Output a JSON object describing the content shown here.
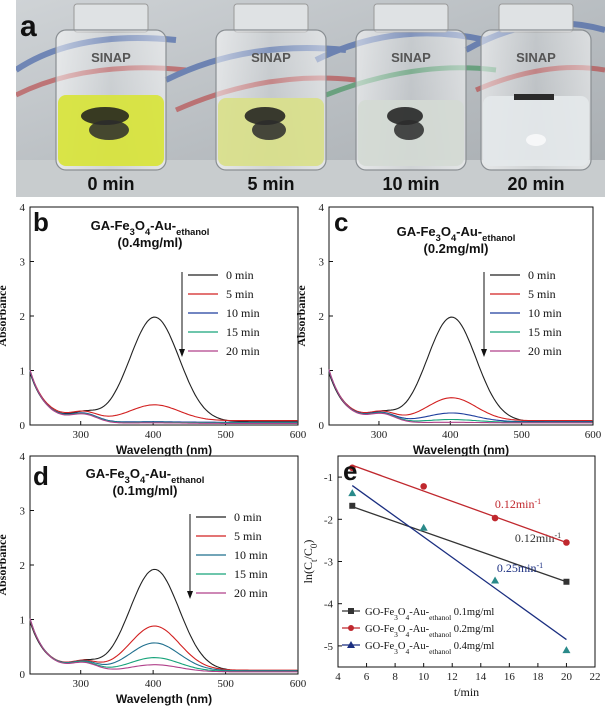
{
  "photo": {
    "panel_letter": "a",
    "brand_text": "SINAP",
    "time_labels": [
      "0 min",
      "5 min",
      "10 min",
      "20 min"
    ]
  },
  "chart_data": [
    {
      "panel": "b",
      "type": "line",
      "title_lines": [
        "GA-Fe3O4-Au-ethanol",
        "(0.4mg/ml)"
      ],
      "xlabel": "Wavelength (nm)",
      "ylabel": "Absorbance",
      "xlim": [
        230,
        600
      ],
      "ylim": [
        0,
        4
      ],
      "xticks": [
        300,
        400,
        500,
        600
      ],
      "yticks": [
        0,
        1,
        2,
        3,
        4
      ],
      "series": [
        {
          "name": "0 min",
          "color": "#222222",
          "baseline": 0.06,
          "peak": 1.98
        },
        {
          "name": "5 min",
          "color": "#d22020",
          "baseline": 0.08,
          "peak": 0.37
        },
        {
          "name": "10 min",
          "color": "#1f3f9e",
          "baseline": 0.05,
          "peak": 0.06
        },
        {
          "name": "15 min",
          "color": "#17a37a",
          "baseline": 0.04,
          "peak": 0.05
        },
        {
          "name": "20 min",
          "color": "#b0408a",
          "baseline": 0.03,
          "peak": 0.04
        }
      ]
    },
    {
      "panel": "c",
      "type": "line",
      "title_lines": [
        "GA-Fe3O4-Au-ethanol",
        "(0.2mg/ml)"
      ],
      "xlabel": "Wavelength (nm)",
      "ylabel": "Absorbance",
      "xlim": [
        230,
        600
      ],
      "ylim": [
        0,
        4
      ],
      "xticks": [
        300,
        400,
        500,
        600
      ],
      "yticks": [
        0,
        1,
        2,
        3,
        4
      ],
      "series": [
        {
          "name": "0 min",
          "color": "#222222",
          "baseline": 0.06,
          "peak": 1.98
        },
        {
          "name": "5 min",
          "color": "#d22020",
          "baseline": 0.08,
          "peak": 0.5
        },
        {
          "name": "10 min",
          "color": "#1f3f9e",
          "baseline": 0.06,
          "peak": 0.22
        },
        {
          "name": "15 min",
          "color": "#17a37a",
          "baseline": 0.05,
          "peak": 0.1
        },
        {
          "name": "20 min",
          "color": "#b0408a",
          "baseline": 0.04,
          "peak": 0.05
        }
      ]
    },
    {
      "panel": "d",
      "type": "line",
      "title_lines": [
        "GA-Fe3O4-Au-ethanol",
        "(0.1mg/ml)"
      ],
      "xlabel": "Wavelength (nm)",
      "ylabel": "Absorbance",
      "xlim": [
        230,
        600
      ],
      "ylim": [
        0,
        4
      ],
      "xticks": [
        300,
        400,
        500,
        600
      ],
      "yticks": [
        0,
        1,
        2,
        3,
        4
      ],
      "series": [
        {
          "name": "0 min",
          "color": "#222222",
          "baseline": 0.06,
          "peak": 1.92
        },
        {
          "name": "5 min",
          "color": "#d22020",
          "baseline": 0.07,
          "peak": 0.88
        },
        {
          "name": "10 min",
          "color": "#1f6f8e",
          "baseline": 0.06,
          "peak": 0.57
        },
        {
          "name": "15 min",
          "color": "#17a37a",
          "baseline": 0.05,
          "peak": 0.3
        },
        {
          "name": "20 min",
          "color": "#b0408a",
          "baseline": 0.04,
          "peak": 0.17
        }
      ]
    },
    {
      "panel": "e",
      "type": "scatter",
      "xlabel": "t/min",
      "ylabel": "ln(Ct/C0)",
      "xlim": [
        4,
        22
      ],
      "ylim": [
        -5.5,
        -0.5
      ],
      "xticks": [
        4,
        6,
        8,
        10,
        12,
        14,
        16,
        18,
        20,
        22
      ],
      "yticks": [
        -1,
        -2,
        -3,
        -4,
        -5
      ],
      "series": [
        {
          "name": "GO-Fe3O4-Au-ethanol 0.1mg/ml",
          "color": "#333333",
          "marker": "square",
          "x": [
            5,
            20
          ],
          "y": [
            -1.68,
            -3.48
          ],
          "fit": [
            [
              5,
              -1.7
            ],
            [
              20,
              -3.48
            ]
          ],
          "rate": "0.12min-1"
        },
        {
          "name": "GO-Fe3O4-Au-ethanol 0.2mg/ml",
          "color": "#c0282e",
          "marker": "circle",
          "x": [
            5,
            10,
            15,
            20
          ],
          "y": [
            -0.78,
            -1.22,
            -1.97,
            -2.55
          ],
          "fit": [
            [
              5,
              -0.72
            ],
            [
              20,
              -2.55
            ]
          ],
          "rate": "0.12min-1"
        },
        {
          "name": "GO-Fe3O4-Au-ethanol 0.4mg/ml",
          "color": "#1a2e80",
          "marker": "triangle",
          "x": [
            5,
            10,
            15,
            20
          ],
          "y": [
            -1.38,
            -2.2,
            -3.45,
            -5.1
          ],
          "fit": [
            [
              5,
              -1.2
            ],
            [
              20,
              -4.85
            ]
          ],
          "rate": "0.25min-1"
        }
      ]
    }
  ]
}
